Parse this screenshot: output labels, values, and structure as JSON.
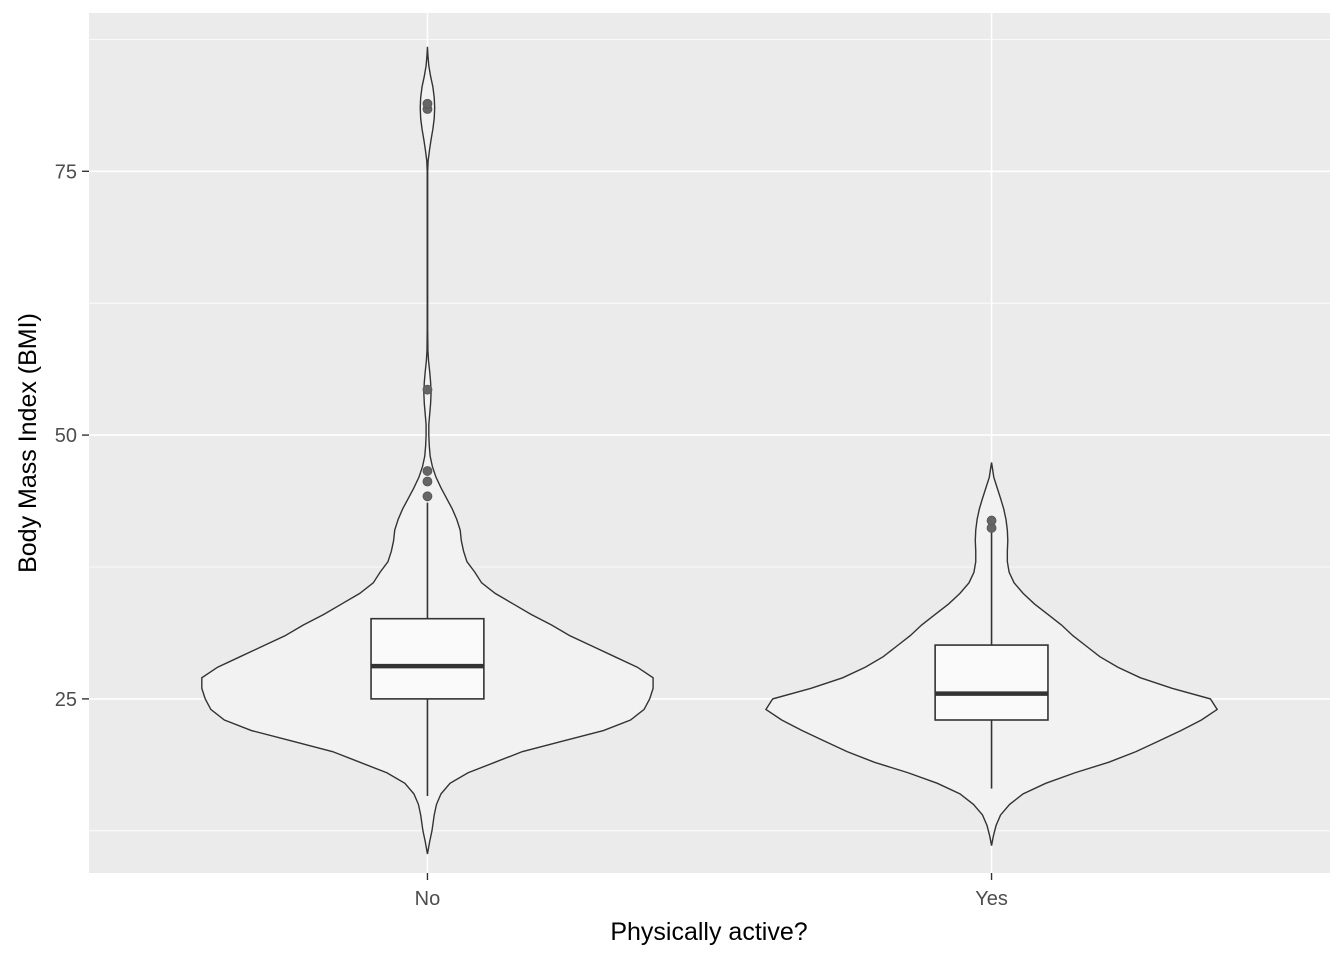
{
  "chart_data": {
    "type": "violin",
    "xlabel": "Physically active?",
    "ylabel": "Body Mass Index (BMI)",
    "categories": [
      "No",
      "Yes"
    ],
    "ylim": [
      8.5,
      90
    ],
    "yticks": [
      25,
      50,
      75
    ],
    "grid": true,
    "legend": "none",
    "groups": [
      {
        "category": "No",
        "violin_range": [
          10.3,
          86.8
        ],
        "density_profile": [
          [
            10.3,
            0.0
          ],
          [
            11.5,
            0.01
          ],
          [
            12.5,
            0.02
          ],
          [
            14.0,
            0.03
          ],
          [
            15.0,
            0.04
          ],
          [
            16.0,
            0.06
          ],
          [
            17.0,
            0.1
          ],
          [
            18.0,
            0.18
          ],
          [
            19.0,
            0.3
          ],
          [
            20.0,
            0.42
          ],
          [
            21.0,
            0.6
          ],
          [
            22.0,
            0.78
          ],
          [
            23.0,
            0.9
          ],
          [
            24.0,
            0.96
          ],
          [
            25.0,
            0.985
          ],
          [
            26.0,
            1.0
          ],
          [
            27.0,
            1.0
          ],
          [
            28.0,
            0.93
          ],
          [
            29.0,
            0.83
          ],
          [
            30.0,
            0.73
          ],
          [
            31.0,
            0.63
          ],
          [
            32.0,
            0.55
          ],
          [
            33.0,
            0.46
          ],
          [
            34.0,
            0.38
          ],
          [
            35.0,
            0.3
          ],
          [
            36.0,
            0.24
          ],
          [
            37.0,
            0.21
          ],
          [
            38.0,
            0.175
          ],
          [
            39.0,
            0.16
          ],
          [
            40.0,
            0.15
          ],
          [
            41.0,
            0.145
          ],
          [
            42.0,
            0.13
          ],
          [
            43.0,
            0.11
          ],
          [
            44.0,
            0.085
          ],
          [
            45.0,
            0.06
          ],
          [
            46.0,
            0.038
          ],
          [
            47.0,
            0.022
          ],
          [
            48.0,
            0.012
          ],
          [
            49.0,
            0.008
          ],
          [
            50.0,
            0.006
          ],
          [
            51.0,
            0.006
          ],
          [
            52.0,
            0.01
          ],
          [
            53.0,
            0.014
          ],
          [
            54.0,
            0.016
          ],
          [
            55.0,
            0.014
          ],
          [
            56.0,
            0.01
          ],
          [
            57.0,
            0.005
          ],
          [
            58.0,
            0.002
          ],
          [
            60.0,
            0.001
          ],
          [
            75.0,
            0.001
          ],
          [
            76.0,
            0.003
          ],
          [
            77.0,
            0.009
          ],
          [
            78.0,
            0.016
          ],
          [
            79.0,
            0.024
          ],
          [
            80.0,
            0.03
          ],
          [
            81.0,
            0.032
          ],
          [
            82.0,
            0.03
          ],
          [
            83.0,
            0.024
          ],
          [
            84.0,
            0.014
          ],
          [
            85.0,
            0.006
          ],
          [
            86.0,
            0.002
          ],
          [
            86.8,
            0.0
          ]
        ],
        "box": {
          "q1": 25.0,
          "median": 28.1,
          "q3": 32.6,
          "whisker_low": 15.8,
          "whisker_high": 43.6
        },
        "outliers": [
          44.2,
          45.6,
          46.6,
          54.3,
          80.9,
          81.4
        ]
      },
      {
        "category": "Yes",
        "violin_range": [
          11.1,
          47.4
        ],
        "density_profile": [
          [
            11.1,
            0.0
          ],
          [
            12.0,
            0.008
          ],
          [
            13.0,
            0.02
          ],
          [
            14.0,
            0.04
          ],
          [
            15.0,
            0.08
          ],
          [
            16.0,
            0.14
          ],
          [
            17.0,
            0.24
          ],
          [
            18.0,
            0.37
          ],
          [
            19.0,
            0.52
          ],
          [
            20.0,
            0.64
          ],
          [
            21.0,
            0.74
          ],
          [
            22.0,
            0.84
          ],
          [
            23.0,
            0.93
          ],
          [
            24.0,
            1.0
          ],
          [
            25.0,
            0.97
          ],
          [
            26.0,
            0.8
          ],
          [
            27.0,
            0.66
          ],
          [
            28.0,
            0.56
          ],
          [
            29.0,
            0.48
          ],
          [
            30.0,
            0.42
          ],
          [
            31.0,
            0.36
          ],
          [
            32.0,
            0.31
          ],
          [
            33.0,
            0.25
          ],
          [
            34.0,
            0.19
          ],
          [
            35.0,
            0.14
          ],
          [
            36.0,
            0.1
          ],
          [
            37.0,
            0.078
          ],
          [
            38.0,
            0.07
          ],
          [
            39.0,
            0.07
          ],
          [
            40.0,
            0.072
          ],
          [
            41.0,
            0.07
          ],
          [
            42.0,
            0.064
          ],
          [
            43.0,
            0.054
          ],
          [
            44.0,
            0.04
          ],
          [
            45.0,
            0.025
          ],
          [
            46.0,
            0.01
          ],
          [
            47.0,
            0.003
          ],
          [
            47.4,
            0.0
          ]
        ],
        "box": {
          "q1": 23.0,
          "median": 25.5,
          "q3": 30.1,
          "whisker_low": 16.5,
          "whisker_high": 41.0
        },
        "outliers": [
          41.2,
          41.9
        ]
      }
    ]
  }
}
